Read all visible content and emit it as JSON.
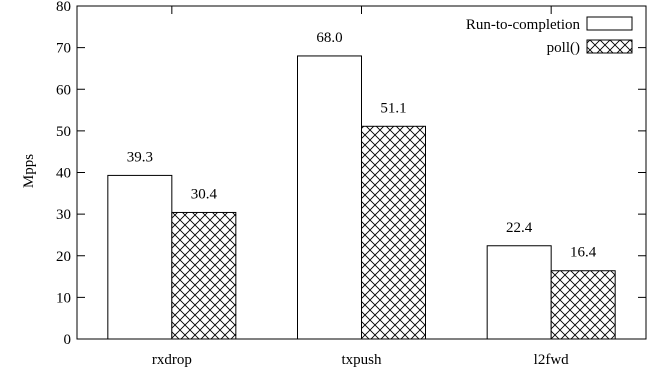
{
  "chart_data": {
    "type": "bar",
    "categories": [
      "rxdrop",
      "txpush",
      "l2fwd"
    ],
    "series": [
      {
        "name": "Run-to-completion",
        "values": [
          39.3,
          68.0,
          22.4
        ],
        "labels": [
          "39.3",
          "68.0",
          "22.4"
        ],
        "pattern": "solid-white"
      },
      {
        "name": "poll()",
        "values": [
          30.4,
          51.1,
          16.4
        ],
        "labels": [
          "30.4",
          "51.1",
          "16.4"
        ],
        "pattern": "crosshatch"
      }
    ],
    "title": "",
    "xlabel": "",
    "ylabel": "Mpps",
    "ylim": [
      0,
      80
    ],
    "yticks": [
      0,
      10,
      20,
      30,
      40,
      50,
      60,
      70,
      80
    ],
    "grid": false,
    "legend_position": "top-right",
    "colors": {
      "stroke": "#000000",
      "fill": "#ffffff"
    }
  }
}
